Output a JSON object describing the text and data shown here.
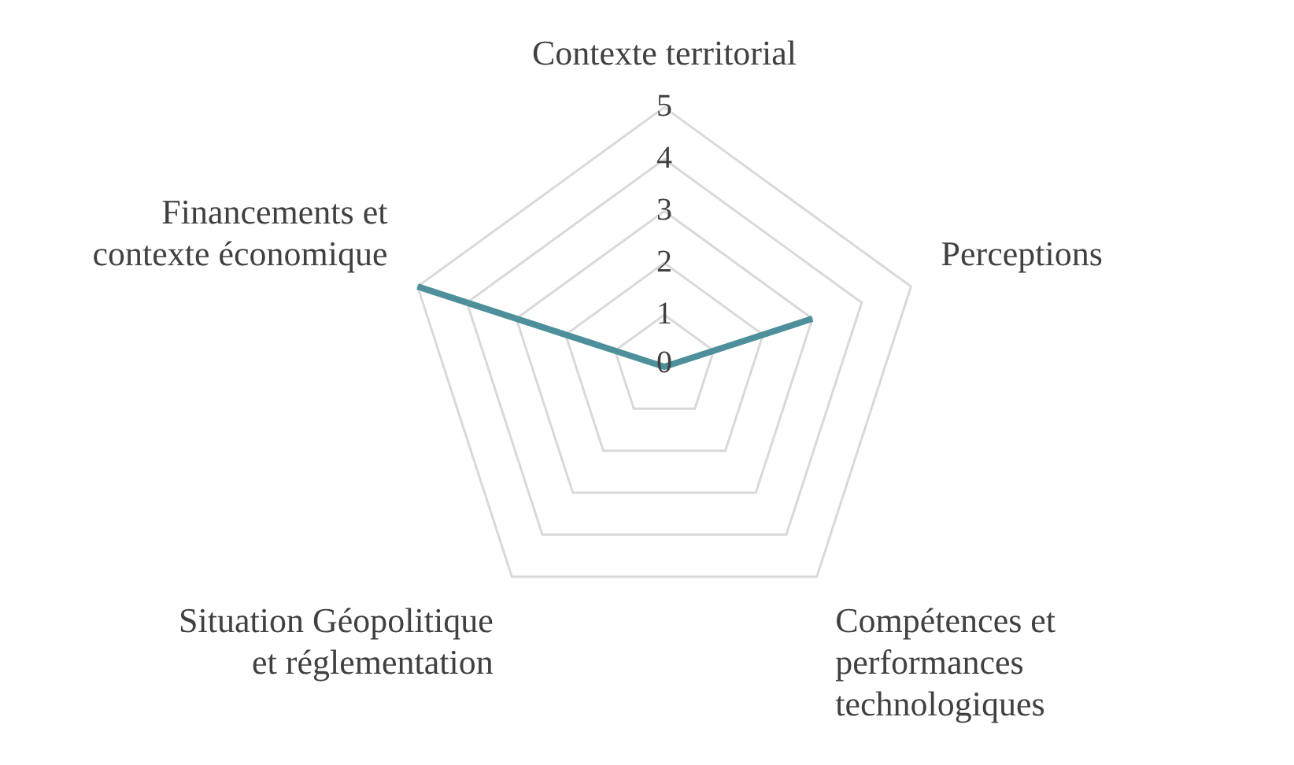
{
  "chart_data": {
    "type": "radar",
    "categories": [
      "Contexte territorial",
      "Perceptions",
      "Compétences et performances technologiques",
      "Situation Géopolitique et réglementation",
      "Financements et contexte économique"
    ],
    "series": [
      {
        "color": "#4e8f9c",
        "values": [
          0,
          3,
          null,
          null,
          5
        ]
      }
    ],
    "ylim": [
      0,
      5
    ],
    "yticks": [
      0,
      1,
      2,
      3,
      4,
      5
    ],
    "grid": true,
    "marker": "none"
  }
}
